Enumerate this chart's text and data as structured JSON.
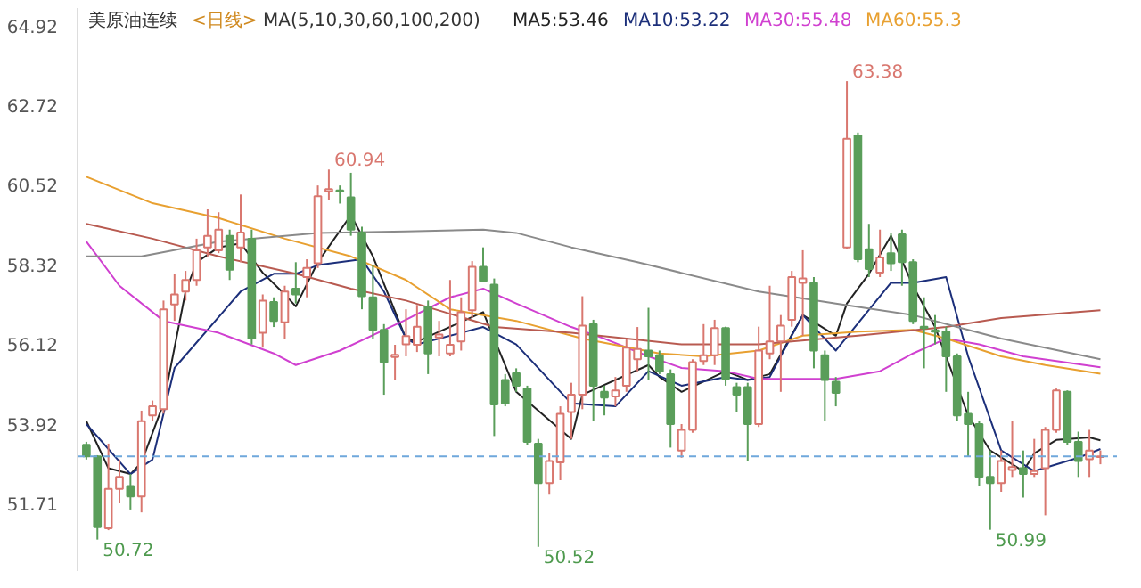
{
  "chart_data": {
    "type": "candlestick",
    "title": "美原油连续",
    "subtitle": "<日线>",
    "annotations": [
      "MA(5,10,30,60,100,200)",
      "50.72",
      "60.94",
      "50.52",
      "63.38",
      "50.99"
    ],
    "categories": [
      null,
      null,
      null,
      null,
      null,
      null,
      null,
      null,
      null,
      null,
      null,
      null,
      null,
      null,
      null,
      null,
      null,
      null,
      null,
      null,
      null,
      null,
      null,
      null,
      null,
      null,
      null,
      null,
      null,
      null,
      null,
      null,
      null,
      null,
      null,
      null,
      null,
      null,
      null,
      null,
      null,
      null,
      null,
      null,
      null,
      null,
      null,
      null,
      null,
      null,
      null,
      null,
      null,
      null,
      null,
      null,
      null,
      null,
      null,
      null,
      null,
      null,
      null,
      null,
      null,
      null,
      null,
      null,
      null,
      null,
      null,
      null,
      null,
      null,
      null,
      null,
      null,
      null,
      null,
      null,
      null,
      null,
      null,
      null,
      null,
      null,
      null,
      null,
      null,
      null,
      null,
      null,
      null
    ],
    "ohlc": [
      [
        53.34,
        53.42,
        52.93,
        53.02
      ],
      [
        53.02,
        53.05,
        50.72,
        51.06
      ],
      [
        51.03,
        53.37,
        50.98,
        52.12
      ],
      [
        52.12,
        52.93,
        51.72,
        52.45
      ],
      [
        52.2,
        52.53,
        51.55,
        51.91
      ],
      [
        51.91,
        54.28,
        51.47,
        53.99
      ],
      [
        54.15,
        54.56,
        54.0,
        54.4
      ],
      [
        54.32,
        57.32,
        54.2,
        57.08
      ],
      [
        57.21,
        58.06,
        56.76,
        57.49
      ],
      [
        57.57,
        58.14,
        57.32,
        57.89
      ],
      [
        57.89,
        59.03,
        57.73,
        58.71
      ],
      [
        58.79,
        59.84,
        58.54,
        59.11
      ],
      [
        58.71,
        59.76,
        58.63,
        59.28
      ],
      [
        59.11,
        59.28,
        57.89,
        58.17
      ],
      [
        58.79,
        60.25,
        58.38,
        59.2
      ],
      [
        59.03,
        59.28,
        56.11,
        56.27
      ],
      [
        56.43,
        57.49,
        56.02,
        57.32
      ],
      [
        57.28,
        57.41,
        56.59,
        56.76
      ],
      [
        56.72,
        57.73,
        56.27,
        57.57
      ],
      [
        57.65,
        58.38,
        57.24,
        57.49
      ],
      [
        57.97,
        58.46,
        57.41,
        58.22
      ],
      [
        58.35,
        60.5,
        58.22,
        60.2
      ],
      [
        60.34,
        60.94,
        60.1,
        60.4
      ],
      [
        60.36,
        60.5,
        60.0,
        60.33
      ],
      [
        60.17,
        60.85,
        59.11,
        59.28
      ],
      [
        59.2,
        59.36,
        57.08,
        57.44
      ],
      [
        57.41,
        58.3,
        56.27,
        56.51
      ],
      [
        56.51,
        56.67,
        54.72,
        55.62
      ],
      [
        55.76,
        56.1,
        55.13,
        55.82
      ],
      [
        56.11,
        57.08,
        55.78,
        56.34
      ],
      [
        56.1,
        57.2,
        55.9,
        56.6
      ],
      [
        57.16,
        57.32,
        55.29,
        55.86
      ],
      [
        56.3,
        56.76,
        55.78,
        56.38
      ],
      [
        55.86,
        57.89,
        55.78,
        56.1
      ],
      [
        56.19,
        57.41,
        55.94,
        57.0
      ],
      [
        57.05,
        58.41,
        56.84,
        58.25
      ],
      [
        58.25,
        58.79,
        57.86,
        57.86
      ],
      [
        57.76,
        57.93,
        53.58,
        54.45
      ],
      [
        55.13,
        55.29,
        54.4,
        54.48
      ],
      [
        55.32,
        55.45,
        54.8,
        54.97
      ],
      [
        54.89,
        54.97,
        53.34,
        53.42
      ],
      [
        53.37,
        53.5,
        50.52,
        52.28
      ],
      [
        52.28,
        53.1,
        51.96,
        52.89
      ],
      [
        52.85,
        54.4,
        52.36,
        54.19
      ],
      [
        54.24,
        55.05,
        53.5,
        54.72
      ],
      [
        54.72,
        57.44,
        54.32,
        56.63
      ],
      [
        56.67,
        56.79,
        53.99,
        54.97
      ],
      [
        54.8,
        54.97,
        54.15,
        54.64
      ],
      [
        54.67,
        55.21,
        54.4,
        54.84
      ],
      [
        54.97,
        56.27,
        54.8,
        56.02
      ],
      [
        55.7,
        56.59,
        55.37,
        55.98
      ],
      [
        55.94,
        57.12,
        55.13,
        55.78
      ],
      [
        55.81,
        55.94,
        55.29,
        55.37
      ],
      [
        55.29,
        55.42,
        53.26,
        53.91
      ],
      [
        53.18,
        53.91,
        52.98,
        53.75
      ],
      [
        53.75,
        55.7,
        53.67,
        55.62
      ],
      [
        55.65,
        56.67,
        55.54,
        55.81
      ],
      [
        55.81,
        56.79,
        55.54,
        56.56
      ],
      [
        56.56,
        56.6,
        54.97,
        55.16
      ],
      [
        54.93,
        55.05,
        54.24,
        54.72
      ],
      [
        54.93,
        55.05,
        52.9,
        53.91
      ],
      [
        53.91,
        56.6,
        53.83,
        55.94
      ],
      [
        55.86,
        57.73,
        55.7,
        56.19
      ],
      [
        56.19,
        56.92,
        54.8,
        56.63
      ],
      [
        56.79,
        58.14,
        56.6,
        57.97
      ],
      [
        57.81,
        58.71,
        56.35,
        57.93
      ],
      [
        57.81,
        57.97,
        55.45,
        55.94
      ],
      [
        55.81,
        55.94,
        53.99,
        55.13
      ],
      [
        55.08,
        55.21,
        54.4,
        54.77
      ],
      [
        58.79,
        63.38,
        58.74,
        61.79
      ],
      [
        61.88,
        61.96,
        58.38,
        58.46
      ],
      [
        58.74,
        59.44,
        57.97,
        58.19
      ],
      [
        58.09,
        59.28,
        57.97,
        58.51
      ],
      [
        58.63,
        59.2,
        58.14,
        58.35
      ],
      [
        59.15,
        59.28,
        57.73,
        58.38
      ],
      [
        58.38,
        58.46,
        56.67,
        56.76
      ],
      [
        56.6,
        57.41,
        55.45,
        56.56
      ],
      [
        56.5,
        56.92,
        56.11,
        56.46
      ],
      [
        56.46,
        56.6,
        54.8,
        55.78
      ],
      [
        55.78,
        55.86,
        53.99,
        54.15
      ],
      [
        54.19,
        54.8,
        53.02,
        53.91
      ],
      [
        53.91,
        53.99,
        52.2,
        52.45
      ],
      [
        52.45,
        53.18,
        50.99,
        52.28
      ],
      [
        52.28,
        53.18,
        52.04,
        52.89
      ],
      [
        52.64,
        54.0,
        52.45,
        52.72
      ],
      [
        52.69,
        53.18,
        51.88,
        52.53
      ],
      [
        52.53,
        53.5,
        52.45,
        52.61
      ],
      [
        52.69,
        53.83,
        51.39,
        53.75
      ],
      [
        53.75,
        54.89,
        53.67,
        54.84
      ],
      [
        54.8,
        54.84,
        53.34,
        53.42
      ],
      [
        53.42,
        53.7,
        52.45,
        52.89
      ],
      [
        52.94,
        53.75,
        52.45,
        53.18
      ],
      [
        53.0,
        53.18,
        52.8,
        53.02
      ]
    ],
    "series": [
      {
        "type": "line",
        "name": "MA5:53.46",
        "color": "#222222",
        "values": [
          53.99,
          null,
          52.69,
          null,
          52.53,
          52.85,
          null,
          54.48,
          null,
          57.57,
          58.38,
          null,
          58.79,
          null,
          58.9,
          null,
          58.09,
          null,
          57.49,
          57.16,
          null,
          58.38,
          null,
          null,
          59.68,
          null,
          58.54,
          null,
          null,
          56.27,
          56.19,
          null,
          null,
          null,
          null,
          null,
          57.0,
          null,
          null,
          54.8,
          null,
          null,
          null,
          null,
          53.5,
          54.72,
          null,
          null,
          null,
          null,
          null,
          55.54,
          55.21,
          null,
          54.8,
          null,
          null,
          null,
          55.37,
          null,
          55.13,
          null,
          55.29,
          null,
          null,
          56.92,
          null,
          null,
          56.35,
          57.24,
          null,
          58.06,
          null,
          59.11,
          null,
          57.73,
          null,
          56.59,
          null,
          null,
          54.15,
          null,
          53.18,
          null,
          null,
          52.61,
          53.1,
          null,
          53.47,
          null,
          null,
          53.54,
          53.46
        ]
      },
      {
        "type": "line",
        "name": "MA10:53.22",
        "color": "#1c2f7a",
        "values": [
          53.91,
          null,
          null,
          null,
          52.53,
          null,
          52.93,
          null,
          55.46,
          null,
          null,
          null,
          null,
          null,
          57.57,
          null,
          null,
          58.06,
          null,
          58.06,
          null,
          58.3,
          null,
          null,
          null,
          58.46,
          null,
          57.57,
          null,
          56.27,
          56.11,
          null,
          null,
          null,
          null,
          null,
          56.59,
          null,
          null,
          56.11,
          null,
          null,
          null,
          null,
          54.48,
          null,
          null,
          null,
          54.4,
          null,
          null,
          55.37,
          null,
          null,
          54.97,
          null,
          null,
          null,
          55.21,
          null,
          55.13,
          null,
          55.21,
          null,
          null,
          56.92,
          null,
          null,
          55.94,
          null,
          null,
          null,
          null,
          57.81,
          null,
          57.81,
          null,
          null,
          57.97,
          null,
          55.78,
          null,
          null,
          53.18,
          null,
          null,
          52.61,
          null,
          null,
          null,
          52.98,
          null,
          53.22
        ]
      },
      {
        "type": "line",
        "name": "MA30:55.48",
        "color": "#d040d0",
        "values": [
          58.95,
          null,
          null,
          57.73,
          null,
          null,
          null,
          56.76,
          null,
          null,
          null,
          null,
          56.43,
          null,
          null,
          null,
          null,
          55.86,
          null,
          55.54,
          null,
          null,
          null,
          55.94,
          null,
          null,
          null,
          56.51,
          null,
          56.79,
          null,
          null,
          null,
          57.41,
          null,
          null,
          57.65,
          null,
          null,
          57.24,
          null,
          null,
          null,
          null,
          56.59,
          null,
          null,
          56.27,
          null,
          null,
          null,
          55.78,
          null,
          null,
          55.46,
          null,
          null,
          null,
          55.37,
          null,
          null,
          55.16,
          null,
          null,
          null,
          null,
          null,
          null,
          55.16,
          null,
          null,
          null,
          55.37,
          null,
          null,
          55.86,
          null,
          null,
          56.27,
          null,
          null,
          56.11,
          null,
          null,
          null,
          55.78,
          null,
          null,
          null,
          null,
          null,
          null,
          55.48
        ]
      },
      {
        "type": "line",
        "name": "MA60:55.3",
        "color": "#e8a030",
        "values": [
          60.74,
          null,
          null,
          null,
          null,
          null,
          60.01,
          null,
          null,
          null,
          null,
          null,
          59.6,
          null,
          null,
          null,
          null,
          null,
          59.03,
          null,
          null,
          null,
          null,
          null,
          58.54,
          null,
          null,
          null,
          null,
          57.89,
          null,
          null,
          null,
          57.08,
          null,
          null,
          null,
          null,
          null,
          56.76,
          null,
          null,
          null,
          null,
          null,
          56.27,
          null,
          null,
          null,
          null,
          null,
          null,
          55.86,
          null,
          null,
          null,
          55.78,
          null,
          null,
          null,
          null,
          55.94,
          null,
          null,
          null,
          56.35,
          null,
          null,
          null,
          null,
          56.46,
          null,
          null,
          null,
          null,
          56.51,
          null,
          null,
          56.27,
          null,
          null,
          null,
          null,
          55.78,
          null,
          null,
          null,
          55.54,
          null,
          null,
          null,
          null,
          55.3
        ]
      },
      {
        "type": "line",
        "color": "#b85a50",
        "values": [
          59.44,
          null,
          null,
          null,
          null,
          null,
          59.03,
          null,
          null,
          null,
          null,
          null,
          58.54,
          null,
          null,
          null,
          null,
          null,
          null,
          58.06,
          null,
          null,
          null,
          null,
          57.65,
          null,
          null,
          null,
          null,
          57.32,
          null,
          null,
          null,
          null,
          null,
          null,
          null,
          56.59,
          null,
          null,
          null,
          null,
          null,
          null,
          56.43,
          null,
          null,
          null,
          null,
          56.27,
          null,
          null,
          null,
          null,
          56.11,
          null,
          null,
          null,
          null,
          null,
          null,
          56.11,
          null,
          null,
          null,
          null,
          null,
          null,
          null,
          null,
          56.35,
          null,
          null,
          null,
          null,
          null,
          null,
          null,
          56.59,
          null,
          null,
          null,
          null,
          56.84,
          null,
          null,
          null,
          null,
          null,
          null,
          null,
          null,
          57.05
        ]
      },
      {
        "type": "line",
        "color": "#8a8a8a",
        "values": [
          58.54,
          null,
          null,
          null,
          null,
          58.54,
          null,
          null,
          null,
          null,
          null,
          null,
          58.95,
          null,
          null,
          null,
          null,
          null,
          null,
          null,
          null,
          59.19,
          null,
          null,
          null,
          null,
          null,
          null,
          null,
          59.23,
          null,
          null,
          null,
          null,
          null,
          null,
          59.28,
          null,
          null,
          59.19,
          null,
          null,
          null,
          null,
          58.79,
          null,
          null,
          null,
          null,
          null,
          58.38,
          null,
          null,
          null,
          null,
          null,
          null,
          null,
          null,
          null,
          null,
          57.57,
          null,
          null,
          null,
          null,
          null,
          null,
          57.24,
          null,
          null,
          null,
          null,
          null,
          null,
          56.92,
          null,
          null,
          null,
          56.59,
          null,
          null,
          null,
          56.27,
          null,
          null,
          null,
          null,
          null,
          null,
          null,
          null,
          55.7
        ]
      }
    ],
    "ref_lines": [
      {
        "axis": "y",
        "value": 53.02,
        "color": "#6fa8dc",
        "line_style": "dashed"
      }
    ],
    "ylim": [
      49.85,
      65.4
    ],
    "yticks": [
      64.92,
      62.72,
      60.52,
      58.32,
      56.12,
      53.92,
      51.71
    ],
    "tick_labels": "y",
    "grid": false
  }
}
